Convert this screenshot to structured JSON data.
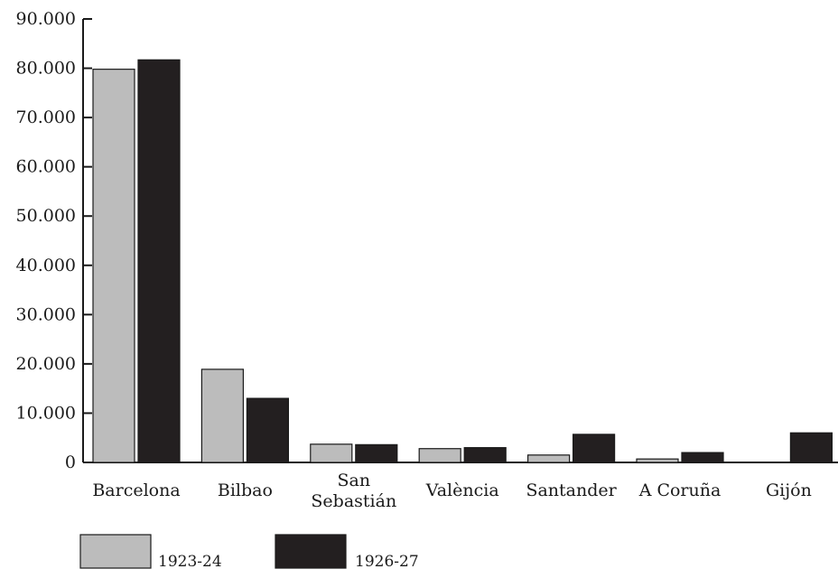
{
  "chart_data": {
    "type": "bar",
    "title": "",
    "xlabel": "",
    "ylabel": "",
    "ylim": [
      0,
      90000
    ],
    "yticks": [
      0,
      10000,
      20000,
      30000,
      40000,
      50000,
      60000,
      70000,
      80000,
      90000
    ],
    "ytick_labels": [
      "0",
      "10.000",
      "20.000",
      "30.000",
      "40.000",
      "50.000",
      "60.000",
      "70.000",
      "80.000",
      "90.000"
    ],
    "categories": [
      [
        "Barcelona"
      ],
      [
        "Bilbao"
      ],
      [
        "San",
        "Sebastián"
      ],
      [
        "València"
      ],
      [
        "Santander"
      ],
      [
        "A Coruña"
      ],
      [
        "Gijón"
      ]
    ],
    "series": [
      {
        "name": "1923-24",
        "color": "#bcbcbc",
        "values": [
          79800,
          18900,
          3700,
          2800,
          1500,
          700,
          0
        ]
      },
      {
        "name": "1926-27",
        "color": "#231f20",
        "values": [
          81700,
          13000,
          3600,
          3000,
          5700,
          2000,
          6000
        ]
      }
    ],
    "grid": false,
    "legend": "bottom-left"
  }
}
